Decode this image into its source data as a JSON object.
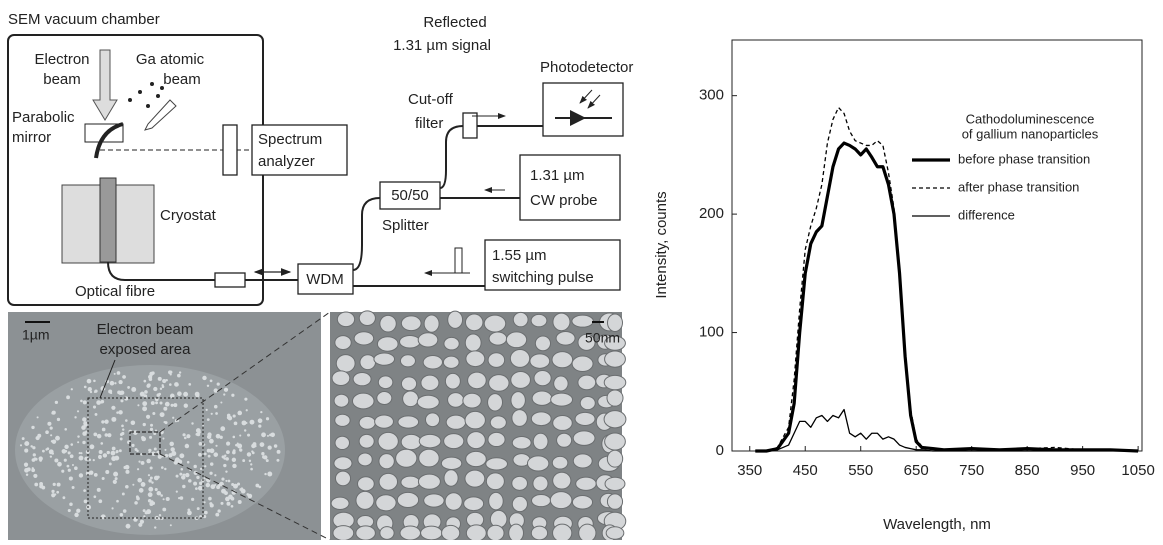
{
  "diagram": {
    "chamber_title": "SEM vacuum chamber",
    "electron_beam": [
      "Electron",
      "beam"
    ],
    "ga_beam": [
      "Ga atomic",
      "beam"
    ],
    "mirror": [
      "Parabolic",
      "mirror"
    ],
    "spectrum_analyzer": [
      "Spectrum",
      "analyzer"
    ],
    "cryostat": "Cryostat",
    "optical_fibre": "Optical fibre",
    "wdm": "WDM",
    "splitter_ratio": "50/50",
    "splitter": "Splitter",
    "cw_probe": [
      "1.31 µm",
      "CW probe"
    ],
    "switching_pulse": [
      "1.55 µm",
      "switching pulse"
    ],
    "cutoff_filter": [
      "Cut-off",
      "filter"
    ],
    "reflected": [
      "Reflected",
      "1.31 µm signal"
    ],
    "photodetector": "Photodetector",
    "scale_1um": "1µm",
    "scale_50nm": "50nm",
    "exposed_area": [
      "Electron beam",
      "exposed area"
    ]
  },
  "chart_data": {
    "type": "line",
    "y_label": "Intensity, counts",
    "x_label": "Wavelength, nm",
    "legend_title": [
      "Cathodoluminescence",
      "of gallium nanoparticles"
    ],
    "x": [
      360,
      380,
      400,
      420,
      430,
      440,
      450,
      460,
      470,
      480,
      490,
      500,
      510,
      520,
      530,
      540,
      550,
      560,
      570,
      580,
      590,
      600,
      610,
      620,
      630,
      640,
      650,
      660,
      680,
      700,
      750,
      800,
      850,
      900,
      950,
      1000,
      1050
    ],
    "series": [
      {
        "name": "before phase transition",
        "color": "#000000",
        "style": "thick",
        "values": [
          0,
          0,
          2,
          15,
          40,
          100,
          150,
          175,
          185,
          190,
          215,
          240,
          255,
          260,
          258,
          255,
          250,
          255,
          248,
          240,
          240,
          225,
          200,
          150,
          80,
          30,
          8,
          3,
          2,
          1,
          2,
          1,
          2,
          1,
          1,
          1,
          0
        ]
      },
      {
        "name": "after phase transition",
        "color": "#000000",
        "style": "dashed",
        "values": [
          0,
          0,
          3,
          20,
          60,
          120,
          170,
          190,
          205,
          225,
          260,
          280,
          290,
          285,
          270,
          262,
          260,
          258,
          258,
          262,
          258,
          235,
          205,
          155,
          85,
          35,
          10,
          4,
          2,
          1,
          2,
          1,
          2,
          3,
          1,
          1,
          0
        ]
      },
      {
        "name": "difference",
        "color": "#000000",
        "style": "thin",
        "values": [
          0,
          0,
          1,
          5,
          15,
          25,
          25,
          20,
          28,
          30,
          25,
          30,
          28,
          35,
          15,
          12,
          15,
          10,
          15,
          15,
          10,
          12,
          10,
          5,
          3,
          2,
          1,
          1,
          0,
          0,
          0,
          0,
          0,
          0,
          0,
          0,
          0
        ]
      }
    ],
    "xlim": [
      318,
      1057
    ],
    "ylim": [
      0,
      347
    ],
    "xticks": [
      350,
      450,
      550,
      650,
      750,
      850,
      950,
      1050
    ],
    "yticks": [
      0,
      100,
      200,
      300
    ]
  }
}
